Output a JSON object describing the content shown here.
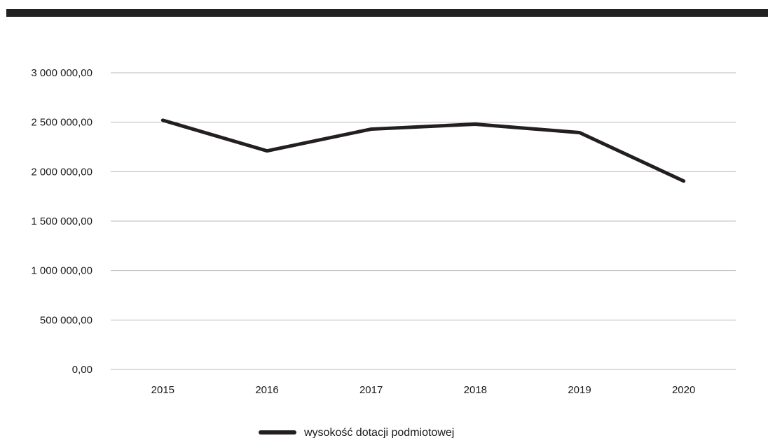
{
  "colors": {
    "header_bar": "#222222",
    "series_line": "#231f20",
    "grid": "#b8b8b8",
    "text": "#1a1a1a"
  },
  "chart_data": {
    "type": "line",
    "title": "",
    "xlabel": "",
    "ylabel": "",
    "categories": [
      "2015",
      "2016",
      "2017",
      "2018",
      "2019",
      "2020"
    ],
    "series": [
      {
        "name": "wysokość dotacji podmiotowej",
        "values": [
          2520000,
          2210000,
          2430000,
          2480000,
          2395000,
          1905000
        ]
      }
    ],
    "ylim": [
      0,
      3000000
    ],
    "y_ticks": [
      {
        "value": 0,
        "label": "0,00"
      },
      {
        "value": 500000,
        "label": "500 000,00"
      },
      {
        "value": 1000000,
        "label": "1 000 000,00"
      },
      {
        "value": 1500000,
        "label": "1 500 000,00"
      },
      {
        "value": 2000000,
        "label": "2 000 000,00"
      },
      {
        "value": 2500000,
        "label": "2 500 000,00"
      },
      {
        "value": 3000000,
        "label": "3 000 000,00"
      }
    ],
    "grid": true,
    "legend_position": "bottom"
  }
}
